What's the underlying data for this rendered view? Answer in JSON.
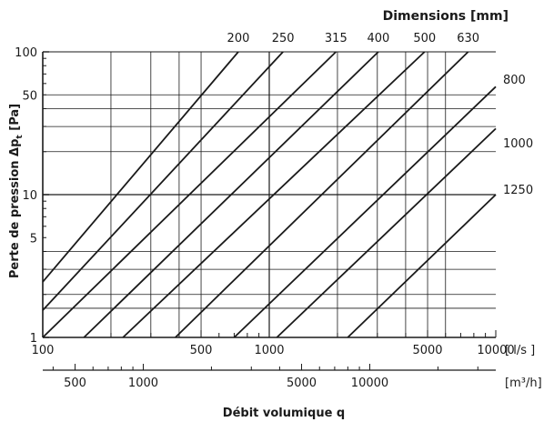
{
  "chart_data": {
    "type": "line",
    "title": "Dimensions [mm]",
    "ylabel": "Perte de pression Δp",
    "ylabel_sub": "t",
    "ylabel_unit": "[Pa]",
    "xlabel": "Débit volumique q",
    "x_scale": "log",
    "y_scale": "log",
    "xlim": [
      100,
      10000
    ],
    "ylim": [
      1,
      100
    ],
    "grid": true,
    "x_unit_ls": "[ l/s ]",
    "x_unit_m3h": "[m³/h]",
    "x_ticks_ls": [
      "100",
      "500",
      "1000",
      "5000",
      "10000"
    ],
    "x_ticks_m3h": [
      "500",
      "1000",
      "5000",
      "10000"
    ],
    "y_ticks": [
      "100",
      "50",
      "10",
      "5",
      "1"
    ],
    "series": [
      {
        "name": "200",
        "points": [
          [
            100,
            2.45
          ],
          [
            730,
            100
          ]
        ]
      },
      {
        "name": "250",
        "points": [
          [
            100,
            1.55
          ],
          [
            1150,
            100
          ]
        ]
      },
      {
        "name": "315",
        "points": [
          [
            100,
            1.0
          ],
          [
            1970,
            100
          ]
        ]
      },
      {
        "name": "400",
        "points": [
          [
            152,
            1.0
          ],
          [
            3030,
            100
          ]
        ]
      },
      {
        "name": "500",
        "points": [
          [
            226,
            1.0
          ],
          [
            4850,
            100
          ]
        ]
      },
      {
        "name": "630",
        "points": [
          [
            385,
            1.0
          ],
          [
            7550,
            100
          ]
        ]
      },
      {
        "name": "800",
        "points": [
          [
            700,
            1.0
          ],
          [
            10000,
            57
          ]
        ]
      },
      {
        "name": "1000",
        "points": [
          [
            1080,
            1.0
          ],
          [
            10000,
            29
          ]
        ]
      },
      {
        "name": "1250",
        "points": [
          [
            2220,
            1.0
          ],
          [
            10000,
            10
          ]
        ]
      }
    ]
  },
  "colors": {
    "line": "#1a1a1a",
    "grid": "#1a1a1a",
    "background": "#ffffff"
  }
}
